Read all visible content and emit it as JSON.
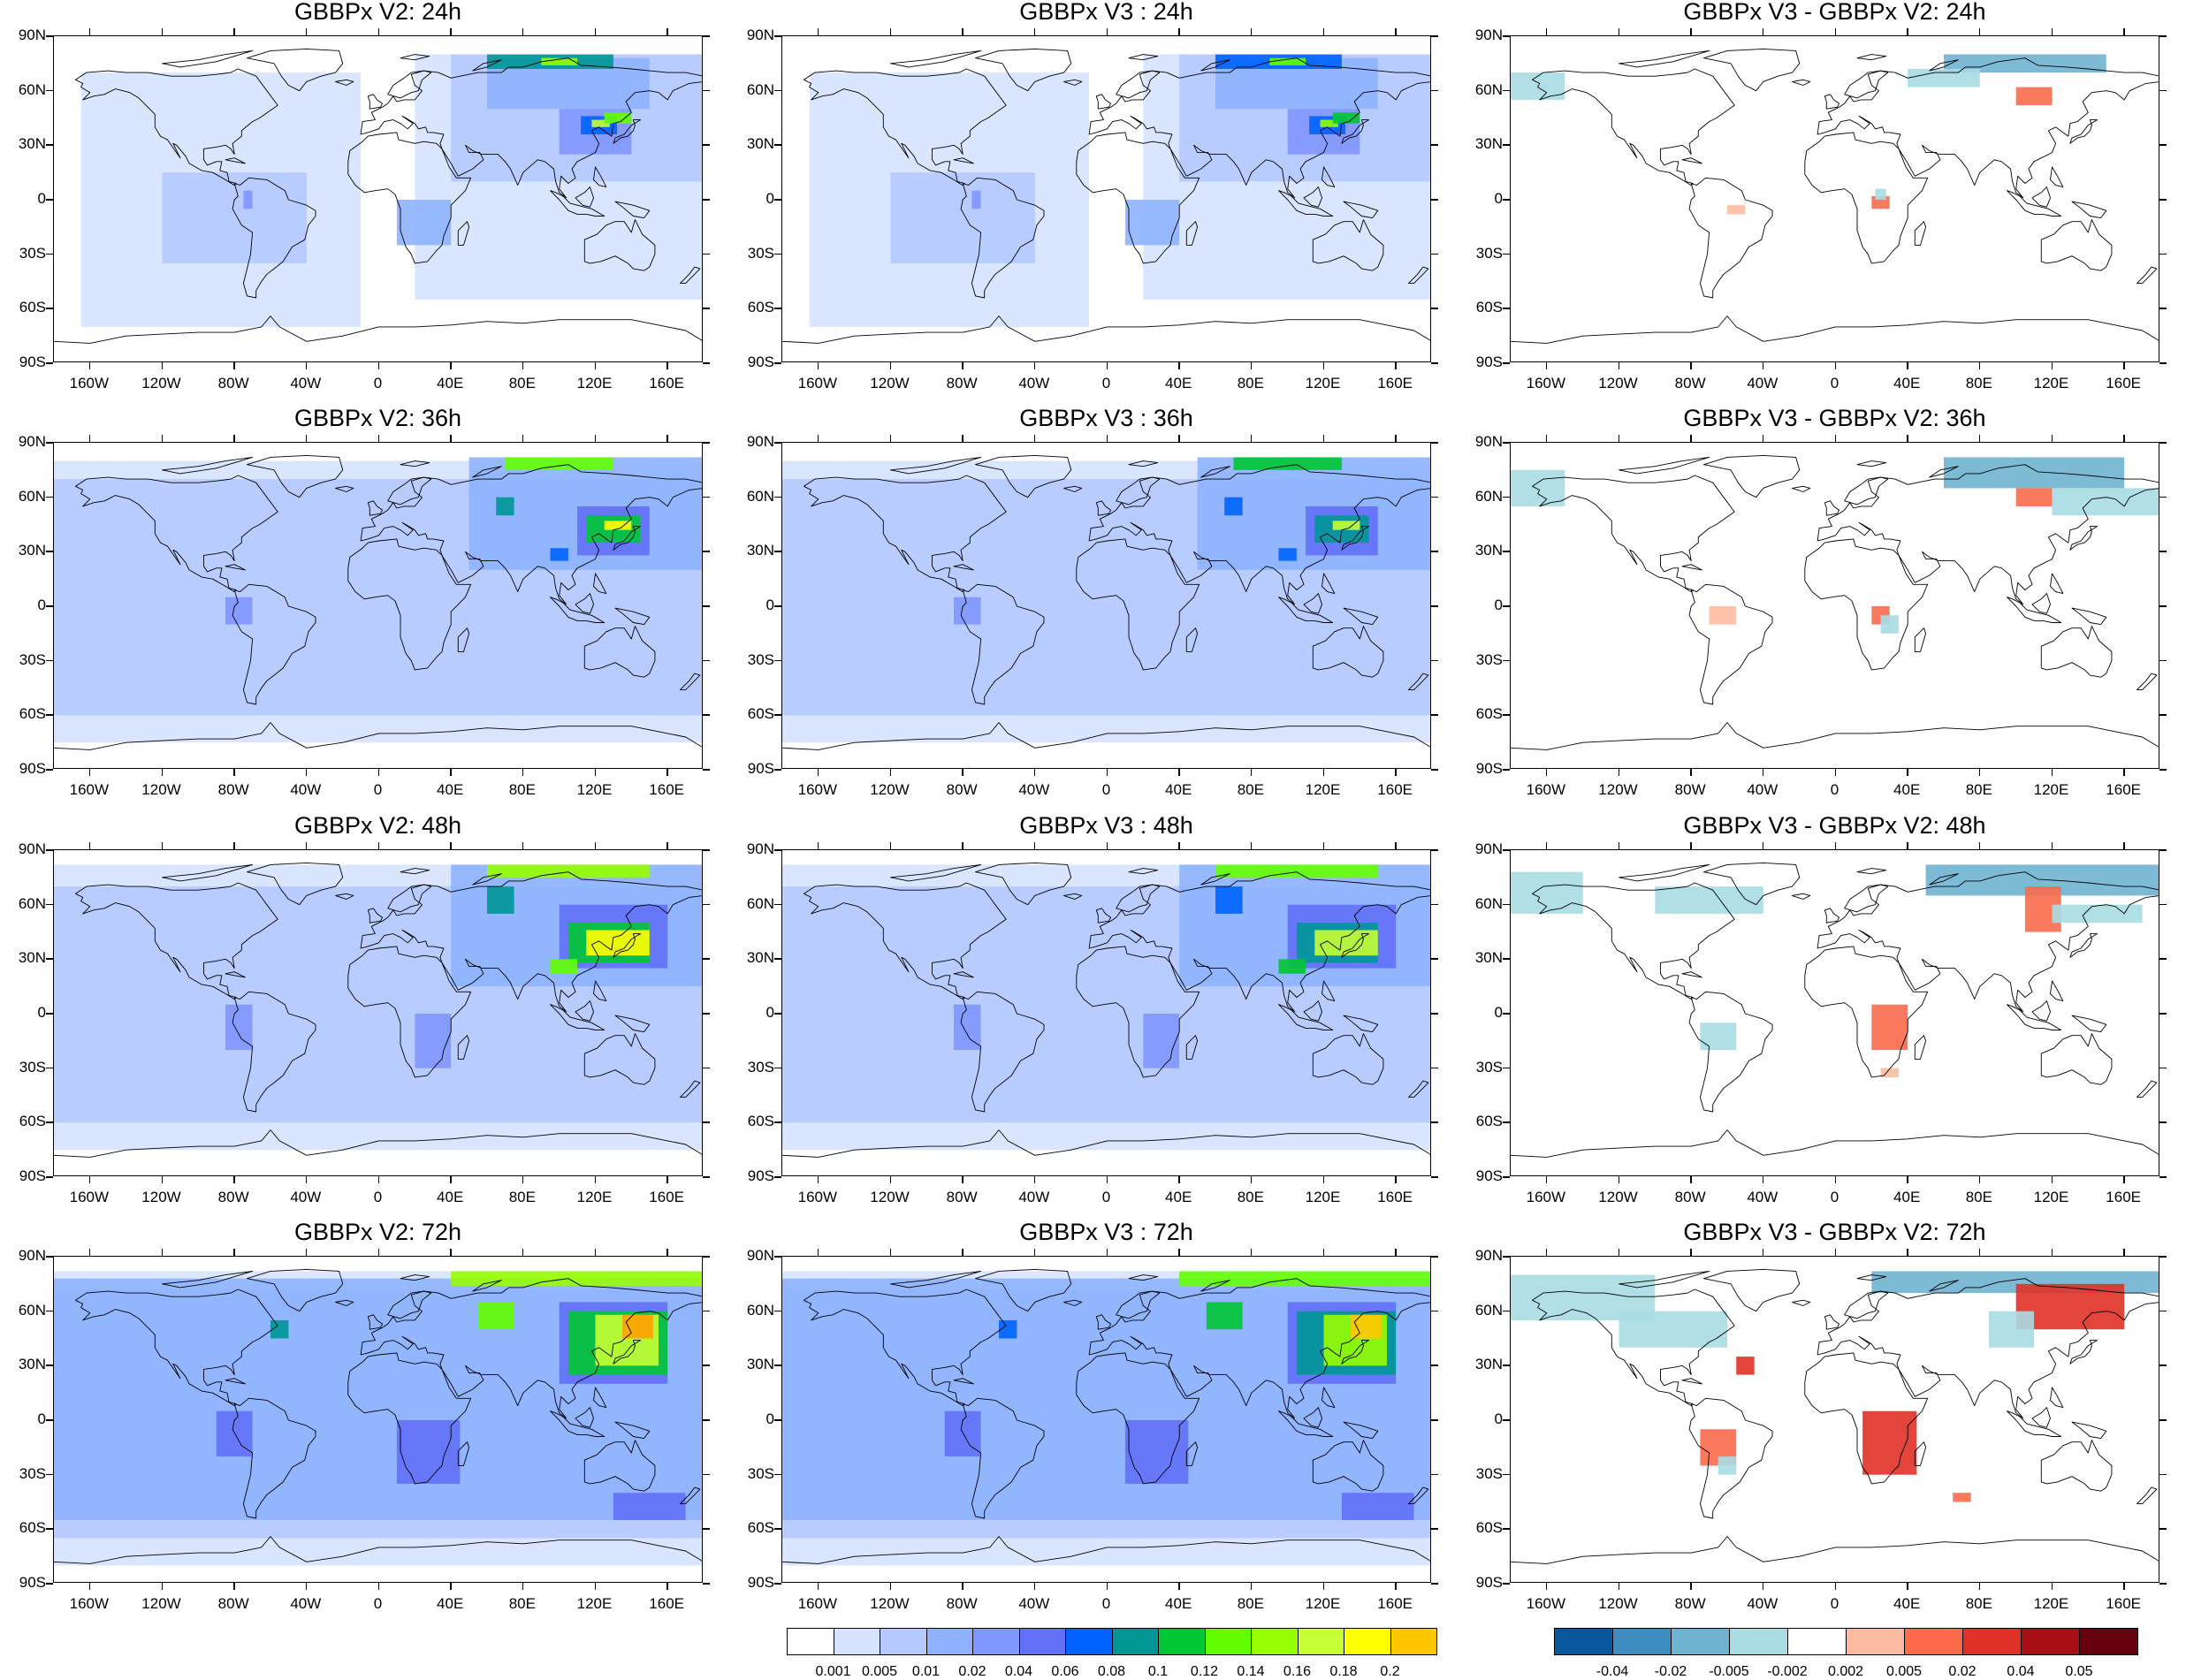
{
  "panels": [
    {
      "title": "GBBPx V2: 24h",
      "kind": "abs",
      "lead": 24,
      "ver": "v2"
    },
    {
      "title": "GBBPx V3 : 24h",
      "kind": "abs",
      "lead": 24,
      "ver": "v3"
    },
    {
      "title": "GBBPx V3 - GBBPx V2: 24h",
      "kind": "diff",
      "lead": 24
    },
    {
      "title": "GBBPx V2: 36h",
      "kind": "abs",
      "lead": 36,
      "ver": "v2"
    },
    {
      "title": "GBBPx V3 : 36h",
      "kind": "abs",
      "lead": 36,
      "ver": "v3"
    },
    {
      "title": "GBBPx V3 - GBBPx V2: 36h",
      "kind": "diff",
      "lead": 36
    },
    {
      "title": "GBBPx V2: 48h",
      "kind": "abs",
      "lead": 48,
      "ver": "v2"
    },
    {
      "title": "GBBPx V3 : 48h",
      "kind": "abs",
      "lead": 48,
      "ver": "v3"
    },
    {
      "title": "GBBPx V3 - GBBPx V2: 48h",
      "kind": "diff",
      "lead": 48
    },
    {
      "title": "GBBPx V2: 72h",
      "kind": "abs",
      "lead": 72,
      "ver": "v2"
    },
    {
      "title": "GBBPx V3 : 72h",
      "kind": "abs",
      "lead": 72,
      "ver": "v3"
    },
    {
      "title": "GBBPx V3 - GBBPx V2: 72h",
      "kind": "diff",
      "lead": 72
    }
  ],
  "lat_ticks": [
    "90N",
    "60N",
    "30N",
    "0",
    "30S",
    "60S",
    "90S"
  ],
  "lon_ticks": [
    "160W",
    "120W",
    "80W",
    "40W",
    "0",
    "40E",
    "80E",
    "120E",
    "160E"
  ],
  "lon_values": [
    -160,
    -120,
    -80,
    -40,
    0,
    40,
    80,
    120,
    160
  ],
  "lat_values": [
    90,
    60,
    30,
    0,
    -30,
    -60,
    -90
  ],
  "colorbar_abs": {
    "labels": [
      "0.001",
      "0.005",
      "0.01",
      "0.02",
      "0.04",
      "0.06",
      "0.08",
      "0.1",
      "0.12",
      "0.14",
      "0.16",
      "0.18",
      "0.2"
    ],
    "colors": [
      "#ffffff",
      "#d6e2ff",
      "#b5c9ff",
      "#8eb2ff",
      "#7f96ff",
      "#6370f8",
      "#0063ff",
      "#009696",
      "#00c633",
      "#63ff00",
      "#96ff00",
      "#c6ff33",
      "#ffff00",
      "#ffc600",
      "#ffa000",
      "#ff7c00",
      "#ff1900"
    ]
  },
  "colorbar_diff": {
    "labels": [
      "-0.04",
      "-0.02",
      "-0.005",
      "-0.002",
      "0.002",
      "0.005",
      "0.02",
      "0.04",
      "0.05"
    ],
    "colors": [
      "#08589e",
      "#3f8cc1",
      "#6fb3d1",
      "#a9dce3",
      "#ffffff",
      "#fcbba1",
      "#fb6a4a",
      "#e03128",
      "#a50f15",
      "#67000d"
    ]
  }
}
